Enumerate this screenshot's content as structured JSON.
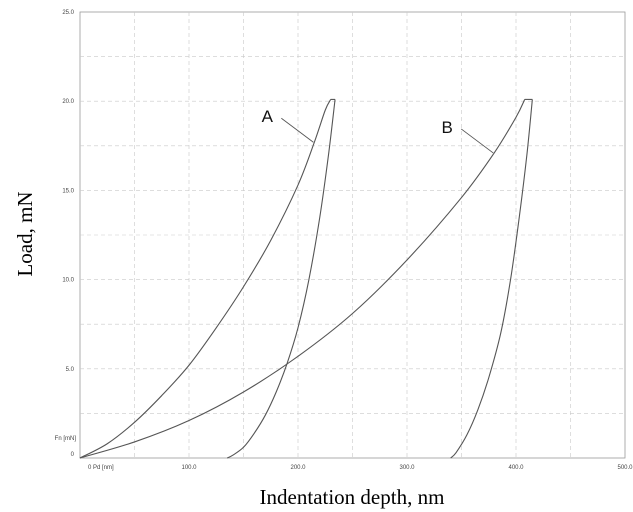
{
  "chart_data": {
    "type": "line",
    "xlabel": "Indentation depth, nm",
    "ylabel": "Load, mN",
    "xlim": [
      0,
      500
    ],
    "ylim": [
      0,
      25
    ],
    "x_ticks": [
      100,
      200,
      300,
      400,
      500
    ],
    "x_tick_labels": [
      "100.0",
      "200.0",
      "300.0",
      "400.0",
      "500.0"
    ],
    "x_origin_label": "0 Pd [nm]",
    "y_ticks": [
      5,
      10,
      15,
      20,
      25
    ],
    "y_tick_labels": [
      "5.0",
      "10.0",
      "15.0",
      "20.0",
      "25.0"
    ],
    "y_origin_label": "0",
    "y_unit_label": "Fn [mN]",
    "grid": true,
    "series": [
      {
        "name": "A",
        "loading": [
          [
            0,
            0
          ],
          [
            25,
            0.8
          ],
          [
            50,
            2.0
          ],
          [
            75,
            3.5
          ],
          [
            100,
            5.2
          ],
          [
            125,
            7.3
          ],
          [
            150,
            9.6
          ],
          [
            175,
            12.2
          ],
          [
            200,
            15.3
          ],
          [
            215,
            17.7
          ],
          [
            225,
            19.5
          ],
          [
            230,
            20.1
          ]
        ],
        "hold": [
          [
            230,
            20.1
          ],
          [
            234,
            20.1
          ]
        ],
        "unloading": [
          [
            234,
            20.1
          ],
          [
            228,
            17.0
          ],
          [
            220,
            13.5
          ],
          [
            210,
            10.0
          ],
          [
            200,
            7.3
          ],
          [
            190,
            5.3
          ],
          [
            180,
            3.7
          ],
          [
            170,
            2.4
          ],
          [
            160,
            1.4
          ],
          [
            150,
            0.6
          ],
          [
            140,
            0.15
          ],
          [
            135,
            0
          ]
        ]
      },
      {
        "name": "B",
        "loading": [
          [
            0,
            0
          ],
          [
            50,
            0.9
          ],
          [
            100,
            2.1
          ],
          [
            150,
            3.7
          ],
          [
            200,
            5.7
          ],
          [
            250,
            8.1
          ],
          [
            300,
            11.1
          ],
          [
            350,
            14.6
          ],
          [
            380,
            17.1
          ],
          [
            400,
            19.1
          ],
          [
            408,
            20.1
          ]
        ],
        "hold": [
          [
            408,
            20.1
          ],
          [
            415,
            20.1
          ]
        ],
        "unloading": [
          [
            415,
            20.1
          ],
          [
            410,
            17.0
          ],
          [
            403,
            13.5
          ],
          [
            395,
            10.0
          ],
          [
            386,
            7.0
          ],
          [
            375,
            4.5
          ],
          [
            365,
            2.7
          ],
          [
            355,
            1.3
          ],
          [
            345,
            0.3
          ],
          [
            340,
            0
          ]
        ]
      }
    ]
  }
}
